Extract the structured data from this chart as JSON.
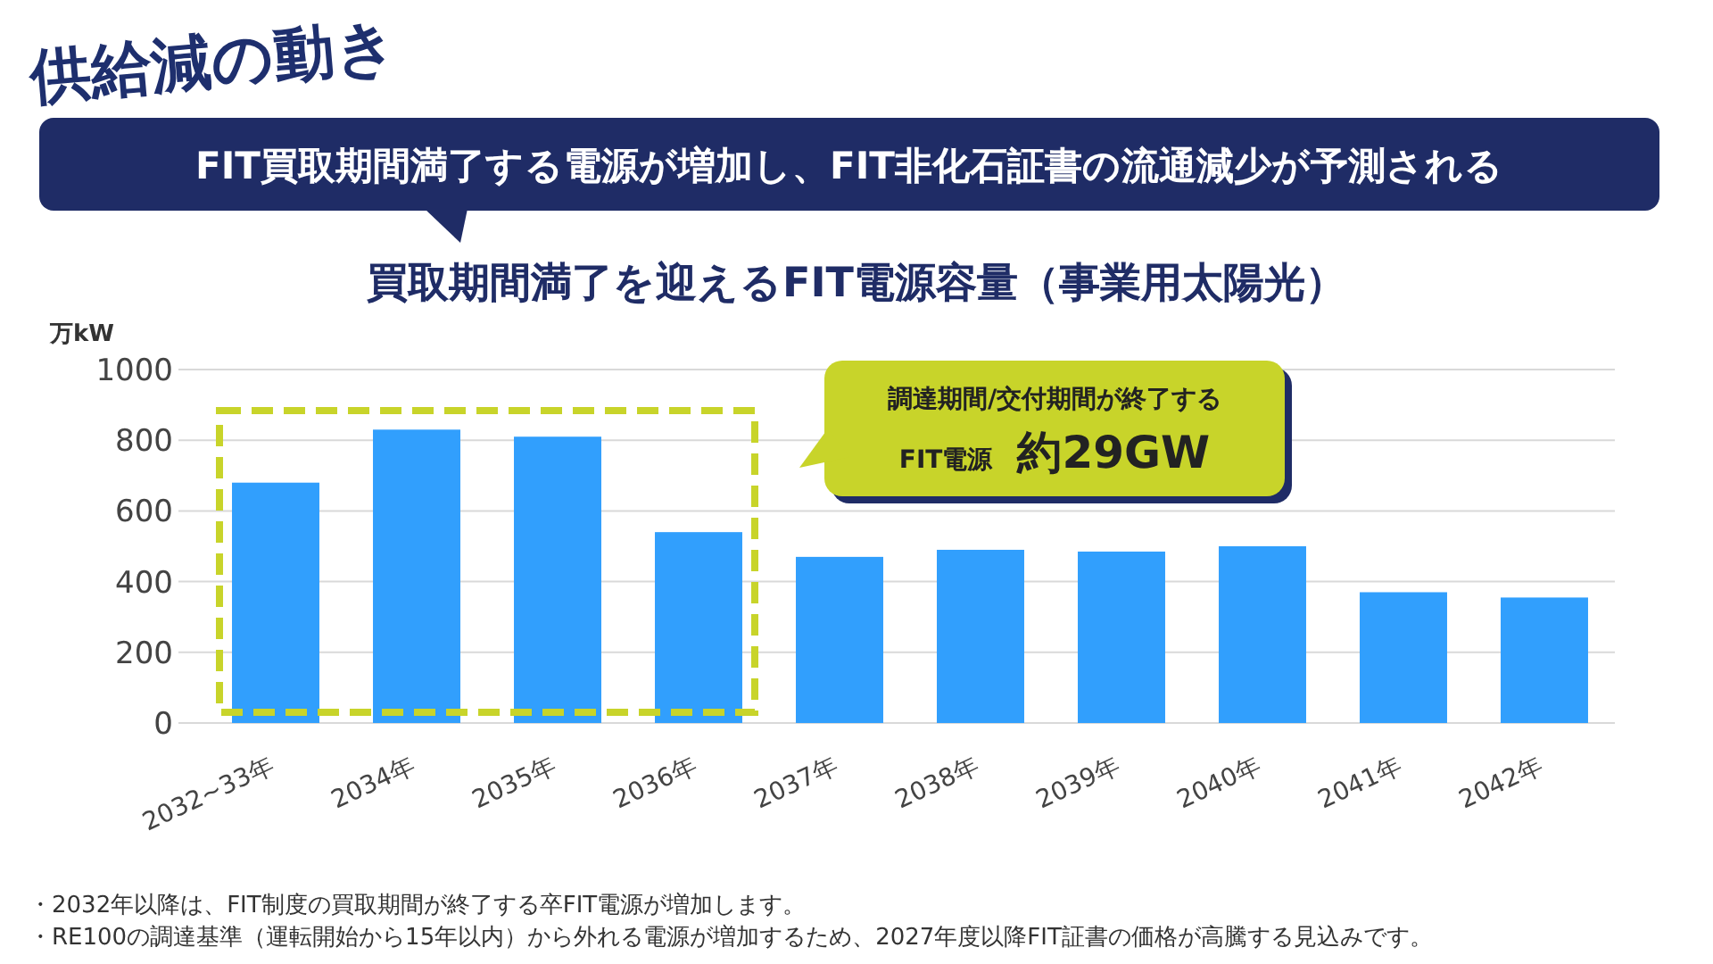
{
  "chart_data": {
    "type": "bar",
    "title": "買取期間満了を迎えるFIT電源容量（事業用太陽光）",
    "subtitle": "FIT買取期間満了する電源が増加し、FIT非化石証書の流通減少が予測される",
    "ylabel": "万kW",
    "categories": [
      "2032~33年",
      "2034年",
      "2035年",
      "2036年",
      "2037年",
      "2038年",
      "2039年",
      "2040年",
      "2041年",
      "2042年"
    ],
    "values": [
      680,
      830,
      810,
      540,
      470,
      490,
      485,
      500,
      370,
      355
    ],
    "color": "#319ffd",
    "ylim": [
      0,
      1000
    ],
    "yticks": [
      0,
      200,
      400,
      600,
      800,
      1000
    ],
    "grid": "y",
    "annotations": [
      "供給減の動き",
      "調達期間/交付期間が終了する",
      "FIT電源",
      "約29GW",
      "・2032年以降は、FIT制度の買取期間が終了する卒FIT電源が増加します。",
      "・RE100の調達基準（運転開始から15年以内）から外れる電源が増加するため、2027年度以降FIT証書の価格が高騰する見込みです。"
    ]
  }
}
